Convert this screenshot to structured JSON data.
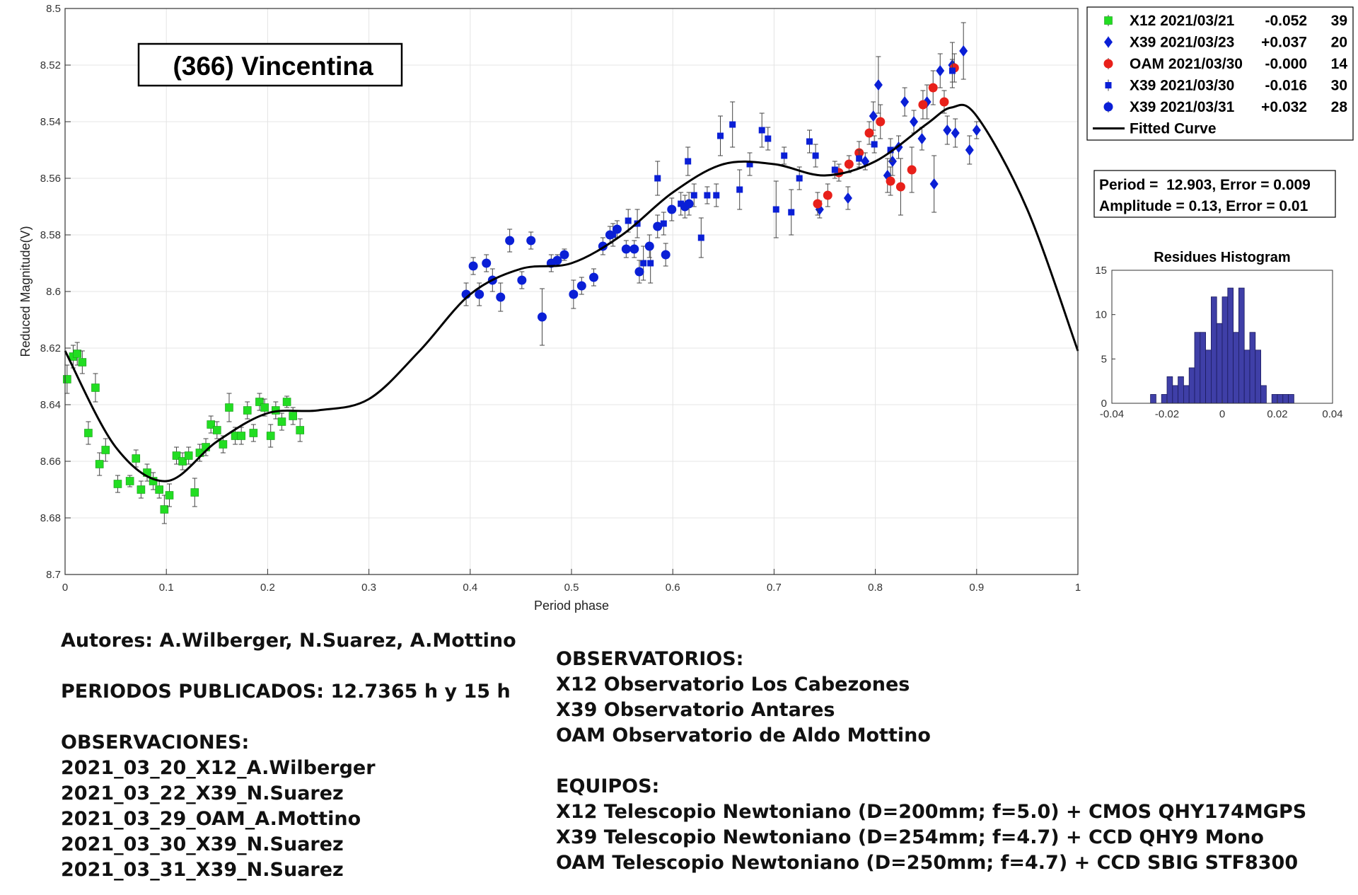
{
  "chart_data": [
    {
      "type": "scatter",
      "title": "(366) Vincentina",
      "xlabel": "Period phase",
      "ylabel": "Reduced Magnitude(V)",
      "xlim": [
        0,
        1
      ],
      "ylim": [
        8.5,
        8.7
      ],
      "y_reversed": true,
      "xticks": [
        "0",
        "0.1",
        "0.2",
        "0.3",
        "0.4",
        "0.5",
        "0.6",
        "0.7",
        "0.8",
        "0.9",
        "1"
      ],
      "yticks": [
        "8.5",
        "8.52",
        "8.54",
        "8.56",
        "8.58",
        "8.6",
        "8.62",
        "8.64",
        "8.66",
        "8.68",
        "8.7"
      ],
      "grid": true,
      "legend": [
        {
          "label": "X12 2021/03/21",
          "offset": "-0.052",
          "count": "39",
          "marker": "square",
          "color": "#22dd22"
        },
        {
          "label": "X39 2021/03/23",
          "offset": "+0.037",
          "count": "20",
          "marker": "diamond",
          "color": "#0a1fd6"
        },
        {
          "label": "OAM 2021/03/30",
          "offset": "-0.000",
          "count": "14",
          "marker": "circle",
          "color": "#e8201a"
        },
        {
          "label": "X39 2021/03/30",
          "offset": "-0.016",
          "count": "30",
          "marker": "small-square",
          "color": "#0a1fd6"
        },
        {
          "label": "X39 2021/03/31",
          "offset": "+0.032",
          "count": "28",
          "marker": "circle",
          "color": "#0a1fd6"
        },
        {
          "label": "Fitted Curve",
          "offset": "",
          "count": "",
          "marker": "line",
          "color": "#000000"
        }
      ],
      "series": [
        {
          "name": "X12 2021/03/21",
          "marker": "square",
          "color": "#22dd22",
          "points": [
            [
              0.002,
              8.631,
              0.005
            ],
            [
              0.008,
              8.623,
              0.004
            ],
            [
              0.012,
              8.622,
              0.004
            ],
            [
              0.017,
              8.625,
              0.004
            ],
            [
              0.023,
              8.65,
              0.004
            ],
            [
              0.03,
              8.634,
              0.005
            ],
            [
              0.034,
              8.661,
              0.004
            ],
            [
              0.04,
              8.656,
              0.004
            ],
            [
              0.052,
              8.668,
              0.003
            ],
            [
              0.064,
              8.667,
              0.002
            ],
            [
              0.07,
              8.659,
              0.003
            ],
            [
              0.075,
              8.67,
              0.003
            ],
            [
              0.081,
              8.664,
              0.003
            ],
            [
              0.087,
              8.667,
              0.003
            ],
            [
              0.093,
              8.67,
              0.003
            ],
            [
              0.098,
              8.677,
              0.005
            ],
            [
              0.103,
              8.672,
              0.004
            ],
            [
              0.11,
              8.658,
              0.003
            ],
            [
              0.116,
              8.66,
              0.003
            ],
            [
              0.122,
              8.658,
              0.003
            ],
            [
              0.128,
              8.671,
              0.005
            ],
            [
              0.133,
              8.657,
              0.003
            ],
            [
              0.139,
              8.655,
              0.003
            ],
            [
              0.144,
              8.647,
              0.003
            ],
            [
              0.15,
              8.649,
              0.003
            ],
            [
              0.156,
              8.654,
              0.003
            ],
            [
              0.162,
              8.641,
              0.005
            ],
            [
              0.168,
              8.651,
              0.003
            ],
            [
              0.174,
              8.651,
              0.003
            ],
            [
              0.18,
              8.642,
              0.003
            ],
            [
              0.186,
              8.65,
              0.003
            ],
            [
              0.192,
              8.639,
              0.003
            ],
            [
              0.197,
              8.641,
              0.003
            ],
            [
              0.203,
              8.651,
              0.004
            ],
            [
              0.208,
              8.642,
              0.003
            ],
            [
              0.214,
              8.646,
              0.003
            ],
            [
              0.219,
              8.639,
              0.002
            ],
            [
              0.225,
              8.644,
              0.003
            ],
            [
              0.232,
              8.649,
              0.004
            ]
          ]
        },
        {
          "name": "X39 2021/03/23",
          "marker": "diamond",
          "color": "#0a1fd6",
          "points": [
            [
              0.745,
              8.571,
              0.003
            ],
            [
              0.773,
              8.567,
              0.004
            ],
            [
              0.79,
              8.554,
              0.003
            ],
            [
              0.798,
              8.538,
              0.005
            ],
            [
              0.803,
              8.527,
              0.01
            ],
            [
              0.812,
              8.559,
              0.006
            ],
            [
              0.817,
              8.554,
              0.005
            ],
            [
              0.823,
              8.549,
              0.004
            ],
            [
              0.829,
              8.533,
              0.005
            ],
            [
              0.838,
              8.54,
              0.004
            ],
            [
              0.846,
              8.546,
              0.004
            ],
            [
              0.851,
              8.533,
              0.006
            ],
            [
              0.858,
              8.562,
              0.01
            ],
            [
              0.864,
              8.522,
              0.006
            ],
            [
              0.871,
              8.543,
              0.005
            ],
            [
              0.876,
              8.52,
              0.008
            ],
            [
              0.879,
              8.544,
              0.005
            ],
            [
              0.887,
              8.515,
              0.01
            ],
            [
              0.893,
              8.55,
              0.005
            ],
            [
              0.9,
              8.543,
              0.003
            ]
          ]
        },
        {
          "name": "OAM 2021/03/30",
          "marker": "circle",
          "color": "#e8201a",
          "points": [
            [
              0.743,
              8.569,
              0.004
            ],
            [
              0.753,
              8.566,
              0.004
            ],
            [
              0.764,
              8.558,
              0.003
            ],
            [
              0.774,
              8.555,
              0.003
            ],
            [
              0.784,
              8.551,
              0.004
            ],
            [
              0.794,
              8.544,
              0.004
            ],
            [
              0.805,
              8.54,
              0.006
            ],
            [
              0.815,
              8.561,
              0.005
            ],
            [
              0.825,
              8.563,
              0.01
            ],
            [
              0.836,
              8.557,
              0.008
            ],
            [
              0.847,
              8.534,
              0.005
            ],
            [
              0.857,
              8.528,
              0.006
            ],
            [
              0.868,
              8.533,
              0.004
            ],
            [
              0.878,
              8.521,
              0.005
            ]
          ]
        },
        {
          "name": "X39 2021/03/30",
          "marker": "small-square",
          "color": "#0a1fd6",
          "points": [
            [
              0.541,
              8.58,
              0.004
            ],
            [
              0.556,
              8.575,
              0.004
            ],
            [
              0.565,
              8.576,
              0.005
            ],
            [
              0.571,
              8.59,
              0.006
            ],
            [
              0.578,
              8.59,
              0.007
            ],
            [
              0.585,
              8.56,
              0.006
            ],
            [
              0.591,
              8.576,
              0.004
            ],
            [
              0.608,
              8.569,
              0.004
            ],
            [
              0.615,
              8.554,
              0.005
            ],
            [
              0.621,
              8.566,
              0.004
            ],
            [
              0.628,
              8.581,
              0.007
            ],
            [
              0.634,
              8.566,
              0.003
            ],
            [
              0.643,
              8.566,
              0.004
            ],
            [
              0.647,
              8.545,
              0.007
            ],
            [
              0.659,
              8.541,
              0.008
            ],
            [
              0.666,
              8.564,
              0.007
            ],
            [
              0.676,
              8.555,
              0.004
            ],
            [
              0.688,
              8.543,
              0.006
            ],
            [
              0.694,
              8.546,
              0.004
            ],
            [
              0.702,
              8.571,
              0.01
            ],
            [
              0.71,
              8.552,
              0.003
            ],
            [
              0.717,
              8.572,
              0.008
            ],
            [
              0.725,
              8.56,
              0.004
            ],
            [
              0.735,
              8.547,
              0.004
            ],
            [
              0.741,
              8.552,
              0.004
            ],
            [
              0.76,
              8.557,
              0.003
            ],
            [
              0.784,
              8.553,
              0.003
            ],
            [
              0.799,
              8.548,
              0.003
            ],
            [
              0.815,
              8.55,
              0.004
            ],
            [
              0.876,
              8.522,
              0.004
            ]
          ]
        },
        {
          "name": "X39 2021/03/31",
          "marker": "circle",
          "color": "#0a1fd6",
          "points": [
            [
              0.396,
              8.601,
              0.004
            ],
            [
              0.403,
              8.591,
              0.003
            ],
            [
              0.409,
              8.601,
              0.004
            ],
            [
              0.416,
              8.59,
              0.003
            ],
            [
              0.422,
              8.596,
              0.004
            ],
            [
              0.43,
              8.602,
              0.005
            ],
            [
              0.439,
              8.582,
              0.004
            ],
            [
              0.451,
              8.596,
              0.003
            ],
            [
              0.46,
              8.582,
              0.003
            ],
            [
              0.471,
              8.609,
              0.01
            ],
            [
              0.48,
              8.59,
              0.003
            ],
            [
              0.486,
              8.589,
              0.002
            ],
            [
              0.493,
              8.587,
              0.002
            ],
            [
              0.502,
              8.601,
              0.005
            ],
            [
              0.51,
              8.598,
              0.003
            ],
            [
              0.522,
              8.595,
              0.003
            ],
            [
              0.531,
              8.584,
              0.003
            ],
            [
              0.538,
              8.58,
              0.003
            ],
            [
              0.545,
              8.578,
              0.003
            ],
            [
              0.554,
              8.585,
              0.003
            ],
            [
              0.562,
              8.585,
              0.003
            ],
            [
              0.567,
              8.593,
              0.004
            ],
            [
              0.577,
              8.584,
              0.004
            ],
            [
              0.585,
              8.577,
              0.004
            ],
            [
              0.593,
              8.587,
              0.004
            ],
            [
              0.599,
              8.571,
              0.004
            ],
            [
              0.612,
              8.57,
              0.004
            ],
            [
              0.616,
              8.569,
              0.004
            ]
          ]
        }
      ],
      "fitted_curve": {
        "period": 12.903,
        "amplitude": 0.13,
        "x": [
          0,
          0.05,
          0.1,
          0.15,
          0.2,
          0.25,
          0.3,
          0.35,
          0.4,
          0.45,
          0.5,
          0.55,
          0.6,
          0.65,
          0.7,
          0.75,
          0.8,
          0.85,
          0.875,
          0.9,
          0.95,
          1.0
        ],
        "y": [
          8.621,
          8.655,
          8.667,
          8.653,
          8.643,
          8.642,
          8.638,
          8.621,
          8.601,
          8.592,
          8.59,
          8.58,
          8.565,
          8.555,
          8.555,
          8.559,
          8.554,
          8.541,
          8.535,
          8.538,
          8.571,
          8.621
        ]
      },
      "info_box": [
        "Period =  12.903, Error = 0.009",
        "Amplitude = 0.13, Error = 0.01"
      ]
    },
    {
      "type": "bar",
      "title": "Residues Histogram",
      "xlim": [
        -0.04,
        0.04
      ],
      "ylim": [
        0,
        15
      ],
      "xticks": [
        "-0.04",
        "-0.02",
        "0",
        "0.02",
        "0.04"
      ],
      "yticks": [
        "0",
        "5",
        "10",
        "15"
      ],
      "bin_width": 0.002,
      "bin_centers": [
        -0.025,
        -0.021,
        -0.019,
        -0.017,
        -0.015,
        -0.013,
        -0.011,
        -0.009,
        -0.007,
        -0.005,
        -0.003,
        -0.001,
        0.001,
        0.003,
        0.005,
        0.007,
        0.009,
        0.011,
        0.013,
        0.015,
        0.019,
        0.021,
        0.023,
        0.025
      ],
      "values": [
        1,
        1,
        3,
        2,
        3,
        2,
        4,
        8,
        8,
        6,
        12,
        9,
        12,
        13,
        8,
        13,
        6,
        8,
        6,
        2,
        1,
        1,
        1,
        1
      ],
      "color": "#3f3fa7"
    }
  ],
  "notes": {
    "authors": "Autores: A.Wilberger, N.Suarez, A.Mottino",
    "periods": "PERIODOS PUBLICADOS: 12.7365 h y 15 h",
    "observations_title": "OBSERVACIONES:",
    "observations": [
      "2021_03_20_X12_A.Wilberger",
      "2021_03_22_X39_N.Suarez",
      "2021_03_29_OAM_A.Mottino",
      "2021_03_30_X39_N.Suarez",
      "2021_03_31_X39_N.Suarez"
    ],
    "observatories_title": "OBSERVATORIOS:",
    "observatories": [
      "X12 Observatorio Los Cabezones",
      "X39 Observatorio Antares",
      "OAM Observatorio de Aldo Mottino"
    ],
    "equipment_title": "EQUIPOS:",
    "equipment": [
      "X12 Telescopio Newtoniano (D=200mm; f=5.0) + CMOS QHY174MGPS",
      "X39 Telescopio Newtoniano (D=254mm; f=4.7) + CCD QHY9 Mono",
      "OAM Telescopio Newtoniano (D=250mm; f=4.7) + CCD SBIG STF8300"
    ]
  }
}
